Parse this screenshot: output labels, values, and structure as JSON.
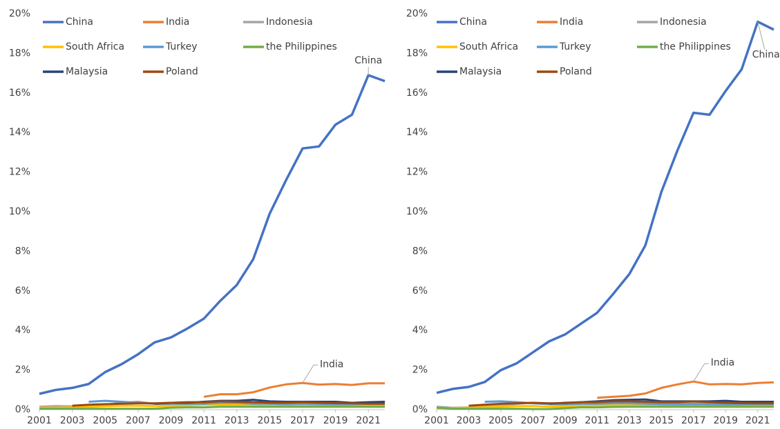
{
  "chart_data": [
    {
      "type": "line",
      "x": [
        2001,
        2002,
        2003,
        2004,
        2005,
        2006,
        2007,
        2008,
        2009,
        2010,
        2011,
        2012,
        2013,
        2014,
        2015,
        2016,
        2017,
        2018,
        2019,
        2020,
        2021,
        2022
      ],
      "xlim": [
        2001,
        2022
      ],
      "xticks": [
        2001,
        2003,
        2005,
        2007,
        2009,
        2011,
        2013,
        2015,
        2017,
        2019,
        2021
      ],
      "ylim": [
        0,
        20
      ],
      "yticks": [
        {
          "value": 0,
          "label": "0%"
        },
        {
          "value": 2,
          "label": "2%"
        },
        {
          "value": 4,
          "label": "4%"
        },
        {
          "value": 6,
          "label": "6%"
        },
        {
          "value": 8,
          "label": "8%"
        },
        {
          "value": 10,
          "label": "10%"
        },
        {
          "value": 12,
          "label": "12%"
        },
        {
          "value": 14,
          "label": "14%"
        },
        {
          "value": 16,
          "label": "16%"
        },
        {
          "value": 18,
          "label": "18%"
        },
        {
          "value": 20,
          "label": "20%"
        }
      ],
      "grid": false,
      "annotations": [
        {
          "text": "China"
        },
        {
          "text": "India"
        }
      ],
      "series": [
        {
          "name": "China",
          "color": "#4472c4",
          "values": [
            0.8,
            1.0,
            1.1,
            1.3,
            1.9,
            2.3,
            2.8,
            3.4,
            3.65,
            4.1,
            4.6,
            5.5,
            6.3,
            7.6,
            9.9,
            11.6,
            13.2,
            13.3,
            14.4,
            14.9,
            16.9,
            16.6
          ]
        },
        {
          "name": "India",
          "color": "#ed7d31",
          "values": [
            null,
            null,
            null,
            null,
            null,
            null,
            null,
            null,
            null,
            null,
            0.65,
            0.78,
            0.78,
            0.88,
            1.12,
            1.28,
            1.35,
            1.27,
            1.3,
            1.25,
            1.33,
            1.33
          ]
        },
        {
          "name": "Indonesia",
          "color": "#a5a5a5",
          "values": [
            0.15,
            0.18,
            0.17,
            0.2,
            0.25,
            0.35,
            0.4,
            0.3,
            0.3,
            0.35,
            0.35,
            0.4,
            0.4,
            0.35,
            0.3,
            0.3,
            0.32,
            0.3,
            0.3,
            0.32,
            0.35,
            0.35
          ]
        },
        {
          "name": "South Africa",
          "color": "#ffc000",
          "values": [
            0.1,
            0.1,
            0.12,
            0.15,
            0.18,
            0.2,
            0.2,
            0.18,
            0.2,
            0.22,
            0.25,
            0.25,
            0.25,
            0.25,
            0.22,
            0.22,
            0.22,
            0.2,
            0.2,
            0.2,
            0.22,
            0.22
          ]
        },
        {
          "name": "Turkey",
          "color": "#5b9bd5",
          "values": [
            null,
            null,
            null,
            0.4,
            0.45,
            0.4,
            0.35,
            0.3,
            0.3,
            0.3,
            0.3,
            0.35,
            0.35,
            0.3,
            0.3,
            0.28,
            0.3,
            0.28,
            0.27,
            0.28,
            0.3,
            0.3
          ]
        },
        {
          "name": "the Philippines",
          "color": "#70ad47",
          "values": [
            0.05,
            0.05,
            0.05,
            0.05,
            0.05,
            0.05,
            0.05,
            0.05,
            0.1,
            0.12,
            0.12,
            0.15,
            0.15,
            0.15,
            0.15,
            0.15,
            0.15,
            0.15,
            0.15,
            0.15,
            0.15,
            0.15
          ]
        },
        {
          "name": "Malaysia",
          "color": "#264478",
          "values": [
            null,
            null,
            null,
            null,
            null,
            null,
            null,
            0.3,
            0.35,
            0.35,
            0.4,
            0.45,
            0.45,
            0.5,
            0.42,
            0.4,
            0.4,
            0.4,
            0.4,
            0.35,
            0.38,
            0.4
          ]
        },
        {
          "name": "Poland",
          "color": "#9e480e",
          "values": [
            null,
            null,
            0.2,
            0.25,
            0.28,
            0.3,
            0.32,
            0.32,
            0.35,
            0.38,
            0.38,
            0.42,
            0.4,
            0.38,
            0.35,
            0.35,
            0.38,
            0.35,
            0.33,
            0.32,
            0.3,
            0.3
          ]
        }
      ]
    },
    {
      "type": "line",
      "x": [
        2001,
        2002,
        2003,
        2004,
        2005,
        2006,
        2007,
        2008,
        2009,
        2010,
        2011,
        2012,
        2013,
        2014,
        2015,
        2016,
        2017,
        2018,
        2019,
        2020,
        2021,
        2022
      ],
      "xlim": [
        2001,
        2022
      ],
      "xticks": [
        2001,
        2003,
        2005,
        2007,
        2009,
        2011,
        2013,
        2015,
        2017,
        2019,
        2021
      ],
      "ylim": [
        0,
        20
      ],
      "yticks": [
        {
          "value": 0,
          "label": "0%"
        },
        {
          "value": 2,
          "label": "2%"
        },
        {
          "value": 4,
          "label": "4%"
        },
        {
          "value": 6,
          "label": "6%"
        },
        {
          "value": 8,
          "label": "8%"
        },
        {
          "value": 10,
          "label": "10%"
        },
        {
          "value": 12,
          "label": "12%"
        },
        {
          "value": 14,
          "label": "14%"
        },
        {
          "value": 16,
          "label": "16%"
        },
        {
          "value": 18,
          "label": "18%"
        },
        {
          "value": 20,
          "label": "20%"
        }
      ],
      "grid": false,
      "annotations": [
        {
          "text": "China"
        },
        {
          "text": "India"
        }
      ],
      "series": [
        {
          "name": "China",
          "color": "#4472c4",
          "values": [
            0.85,
            1.05,
            1.15,
            1.4,
            2.0,
            2.35,
            2.9,
            3.45,
            3.8,
            4.35,
            4.9,
            5.85,
            6.85,
            8.3,
            11.0,
            13.1,
            15.0,
            14.9,
            16.1,
            17.2,
            19.6,
            19.2
          ]
        },
        {
          "name": "India",
          "color": "#ed7d31",
          "values": [
            null,
            null,
            null,
            null,
            null,
            null,
            null,
            null,
            null,
            null,
            0.6,
            0.65,
            0.7,
            0.82,
            1.1,
            1.28,
            1.42,
            1.28,
            1.3,
            1.28,
            1.35,
            1.38
          ]
        },
        {
          "name": "Indonesia",
          "color": "#a5a5a5",
          "values": [
            0.15,
            0.1,
            0.12,
            0.15,
            0.2,
            0.3,
            0.35,
            0.3,
            0.3,
            0.35,
            0.35,
            0.4,
            0.4,
            0.38,
            0.32,
            0.3,
            0.32,
            0.3,
            0.3,
            0.32,
            0.35,
            0.35
          ]
        },
        {
          "name": "South Africa",
          "color": "#ffc000",
          "values": [
            0.08,
            0.08,
            0.1,
            0.12,
            0.15,
            0.18,
            0.18,
            0.15,
            0.18,
            0.2,
            0.22,
            0.22,
            0.22,
            0.22,
            0.2,
            0.2,
            0.2,
            0.18,
            0.18,
            0.18,
            0.2,
            0.2
          ]
        },
        {
          "name": "Turkey",
          "color": "#5b9bd5",
          "values": [
            null,
            null,
            null,
            0.4,
            0.42,
            0.38,
            0.32,
            0.28,
            0.28,
            0.3,
            0.3,
            0.32,
            0.32,
            0.3,
            0.28,
            0.27,
            0.28,
            0.27,
            0.26,
            0.27,
            0.28,
            0.28
          ]
        },
        {
          "name": "the Philippines",
          "color": "#70ad47",
          "values": [
            0.1,
            0.05,
            0.05,
            0.05,
            0.05,
            0.05,
            0.03,
            0.03,
            0.08,
            0.12,
            0.12,
            0.14,
            0.15,
            0.15,
            0.15,
            0.15,
            0.15,
            0.15,
            0.15,
            0.15,
            0.15,
            0.15
          ]
        },
        {
          "name": "Malaysia",
          "color": "#264478",
          "values": [
            null,
            null,
            null,
            null,
            null,
            null,
            null,
            0.3,
            0.35,
            0.38,
            0.42,
            0.48,
            0.5,
            0.52,
            0.42,
            0.42,
            0.42,
            0.42,
            0.45,
            0.4,
            0.4,
            0.4
          ]
        },
        {
          "name": "Poland",
          "color": "#9e480e",
          "values": [
            null,
            null,
            0.2,
            0.25,
            0.3,
            0.32,
            0.35,
            0.32,
            0.33,
            0.38,
            0.38,
            0.42,
            0.42,
            0.4,
            0.38,
            0.38,
            0.42,
            0.38,
            0.35,
            0.33,
            0.32,
            0.32
          ]
        }
      ]
    }
  ]
}
